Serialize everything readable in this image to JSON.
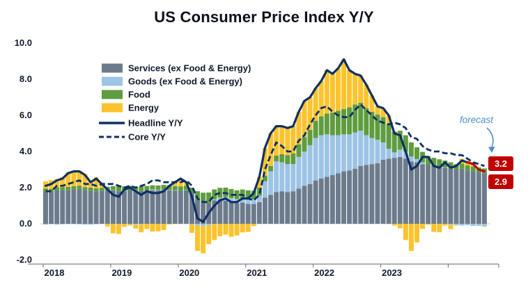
{
  "title": "US Consumer Price Index Y/Y",
  "chart_data": {
    "type": "bar",
    "stacked": true,
    "frequency": "monthly",
    "x_start": "2018-01",
    "x_end": "2024-07",
    "x_tick_labels": [
      "2018",
      "2019",
      "2020",
      "2021",
      "2022",
      "2023"
    ],
    "x_tick_month_indices": [
      0,
      12,
      24,
      36,
      48,
      60
    ],
    "y_ticks": [
      10.0,
      8.0,
      6.0,
      4.0,
      2.0,
      0.0,
      -2.0
    ],
    "y_tick_labels": [
      "10.0",
      "8.0",
      "6.0",
      "4.0",
      "2.0",
      "0.0",
      "-2.0"
    ],
    "ylim": [
      -2.8,
      10.0
    ],
    "grid": false,
    "legend_position": "upper-left-inside",
    "stack_series": [
      {
        "name": "Services (ex Food & Energy)",
        "color": "#6c7b8c",
        "values": [
          1.75,
          1.75,
          1.85,
          1.85,
          1.87,
          1.9,
          1.93,
          1.85,
          1.83,
          1.8,
          1.82,
          1.85,
          1.85,
          1.8,
          1.8,
          1.85,
          1.8,
          1.82,
          1.85,
          1.85,
          1.85,
          1.85,
          1.85,
          1.83,
          1.83,
          1.85,
          1.75,
          1.35,
          1.2,
          1.15,
          1.3,
          1.3,
          1.28,
          1.2,
          1.15,
          1.18,
          1.1,
          1.1,
          1.2,
          1.45,
          1.6,
          1.75,
          1.8,
          1.75,
          1.8,
          1.95,
          2.1,
          2.2,
          2.4,
          2.5,
          2.6,
          2.7,
          2.8,
          2.9,
          2.95,
          3.05,
          3.2,
          3.25,
          3.3,
          3.35,
          3.55,
          3.6,
          3.65,
          3.7,
          3.6,
          3.45,
          3.4,
          3.3,
          3.25,
          3.2,
          3.15,
          3.1,
          3.05,
          3.0,
          3.05,
          2.95,
          2.9,
          2.85,
          2.78
        ]
      },
      {
        "name": "Goods (ex Food & Energy)",
        "color": "#9dc3e6",
        "values": [
          -0.05,
          -0.03,
          -0.05,
          -0.03,
          -0.02,
          -0.02,
          -0.03,
          -0.05,
          -0.05,
          -0.03,
          0.0,
          0.0,
          0.02,
          0.0,
          -0.02,
          -0.02,
          -0.05,
          -0.03,
          0.0,
          0.05,
          0.03,
          0.02,
          0.02,
          0.02,
          0.0,
          0.02,
          -0.02,
          -0.1,
          -0.12,
          -0.08,
          0.05,
          0.15,
          0.2,
          0.22,
          0.22,
          0.22,
          0.25,
          0.25,
          0.35,
          0.9,
          1.3,
          1.7,
          1.6,
          1.55,
          1.5,
          1.75,
          1.9,
          2.15,
          2.35,
          2.4,
          2.35,
          2.2,
          2.1,
          2.05,
          2.0,
          2.0,
          1.95,
          1.65,
          1.45,
          1.3,
          0.95,
          0.55,
          0.3,
          0.4,
          0.4,
          0.27,
          0.18,
          0.1,
          0.0,
          0.0,
          0.0,
          0.02,
          -0.06,
          -0.06,
          -0.1,
          -0.08,
          -0.12,
          -0.12,
          -0.13
        ]
      },
      {
        "name": "Food",
        "color": "#5f9c3f",
        "values": [
          0.2,
          0.18,
          0.18,
          0.18,
          0.17,
          0.18,
          0.18,
          0.18,
          0.18,
          0.17,
          0.17,
          0.2,
          0.21,
          0.26,
          0.27,
          0.25,
          0.26,
          0.25,
          0.24,
          0.23,
          0.24,
          0.28,
          0.27,
          0.24,
          0.24,
          0.24,
          0.25,
          0.45,
          0.52,
          0.58,
          0.55,
          0.54,
          0.52,
          0.5,
          0.48,
          0.5,
          0.5,
          0.48,
          0.45,
          0.32,
          0.3,
          0.32,
          0.45,
          0.5,
          0.6,
          0.7,
          0.8,
          0.85,
          0.95,
          1.05,
          1.15,
          1.25,
          1.35,
          1.4,
          1.5,
          1.55,
          1.55,
          1.5,
          1.45,
          1.4,
          1.4,
          1.35,
          1.15,
          1.05,
          0.9,
          0.78,
          0.65,
          0.58,
          0.5,
          0.45,
          0.42,
          0.38,
          0.35,
          0.3,
          0.28,
          0.28,
          0.27,
          0.27,
          0.28
        ]
      },
      {
        "name": "Energy",
        "color": "#fcc32d",
        "values": [
          0.4,
          0.48,
          0.45,
          0.55,
          0.8,
          0.85,
          0.8,
          0.72,
          0.35,
          0.6,
          0.22,
          -0.15,
          -0.53,
          -0.56,
          -0.15,
          -0.08,
          -0.21,
          -0.44,
          -0.29,
          -0.43,
          -0.42,
          -0.35,
          -0.04,
          0.21,
          0.43,
          0.19,
          -0.48,
          -1.4,
          -1.52,
          -1.05,
          -0.9,
          -0.69,
          -0.6,
          -0.72,
          -0.65,
          -0.48,
          -0.45,
          -0.13,
          0.6,
          1.53,
          1.8,
          1.63,
          1.55,
          1.5,
          1.5,
          1.8,
          2.0,
          1.8,
          1.8,
          1.95,
          2.4,
          2.15,
          2.35,
          2.75,
          2.05,
          1.7,
          1.5,
          1.3,
          0.9,
          0.45,
          0.5,
          0.5,
          -0.1,
          -0.25,
          -0.9,
          -1.5,
          -1.03,
          -0.28,
          -0.05,
          -0.45,
          -0.47,
          -0.1,
          -0.24,
          -0.04,
          0.27,
          0.25,
          0.25,
          0.0,
          -0.03
        ]
      }
    ],
    "line_series": [
      {
        "name": "Headline Y/Y",
        "style": "solid",
        "color": "#0e2f63",
        "values": [
          2.1,
          2.2,
          2.4,
          2.5,
          2.8,
          2.9,
          2.9,
          2.7,
          2.3,
          2.5,
          2.2,
          1.9,
          1.6,
          1.5,
          1.9,
          2.0,
          1.8,
          1.6,
          1.8,
          1.7,
          1.7,
          1.8,
          2.1,
          2.3,
          2.5,
          2.3,
          1.5,
          0.3,
          0.1,
          0.6,
          1.0,
          1.3,
          1.4,
          1.2,
          1.2,
          1.4,
          1.4,
          1.7,
          2.6,
          4.2,
          5.0,
          5.4,
          5.4,
          5.3,
          5.4,
          6.2,
          6.8,
          7.0,
          7.5,
          7.9,
          8.5,
          8.3,
          8.6,
          9.1,
          8.5,
          8.3,
          8.2,
          7.7,
          7.1,
          6.5,
          6.4,
          6.0,
          5.0,
          4.9,
          4.0,
          3.0,
          3.2,
          3.7,
          3.7,
          3.2,
          3.1,
          3.4,
          3.1,
          3.2,
          3.5,
          3.4,
          3.3,
          3.0,
          2.9
        ]
      },
      {
        "name": "Core Y/Y",
        "style": "dashed",
        "color": "#0e2f63",
        "values": [
          1.8,
          1.8,
          2.1,
          2.1,
          2.2,
          2.3,
          2.4,
          2.2,
          2.2,
          2.1,
          2.2,
          2.2,
          2.2,
          2.1,
          2.0,
          2.1,
          2.0,
          2.1,
          2.2,
          2.4,
          2.4,
          2.3,
          2.3,
          2.3,
          2.3,
          2.4,
          2.1,
          1.4,
          1.2,
          1.2,
          1.6,
          1.7,
          1.7,
          1.6,
          1.6,
          1.6,
          1.4,
          1.3,
          1.6,
          3.0,
          3.8,
          4.5,
          4.3,
          4.0,
          4.0,
          4.6,
          4.9,
          5.5,
          6.0,
          6.4,
          6.5,
          6.2,
          6.0,
          5.9,
          5.9,
          6.3,
          6.6,
          6.3,
          6.0,
          5.7,
          5.6,
          5.5,
          5.6,
          5.5,
          5.3,
          4.8,
          4.7,
          4.3,
          4.1,
          4.0,
          4.0,
          3.9,
          3.9,
          3.8,
          3.8,
          3.6,
          3.4,
          3.3,
          3.2
        ]
      }
    ],
    "annotations": {
      "forecast_label": "forecast",
      "forecast_label_color": "#4e8fd0",
      "forecast_segment_color": "#c00000",
      "forecast_index": 78,
      "badges": [
        {
          "text": "3.2",
          "series": "Core Y/Y",
          "color": "#c00000"
        },
        {
          "text": "2.9",
          "series": "Headline Y/Y",
          "color": "#c00000"
        }
      ]
    }
  }
}
